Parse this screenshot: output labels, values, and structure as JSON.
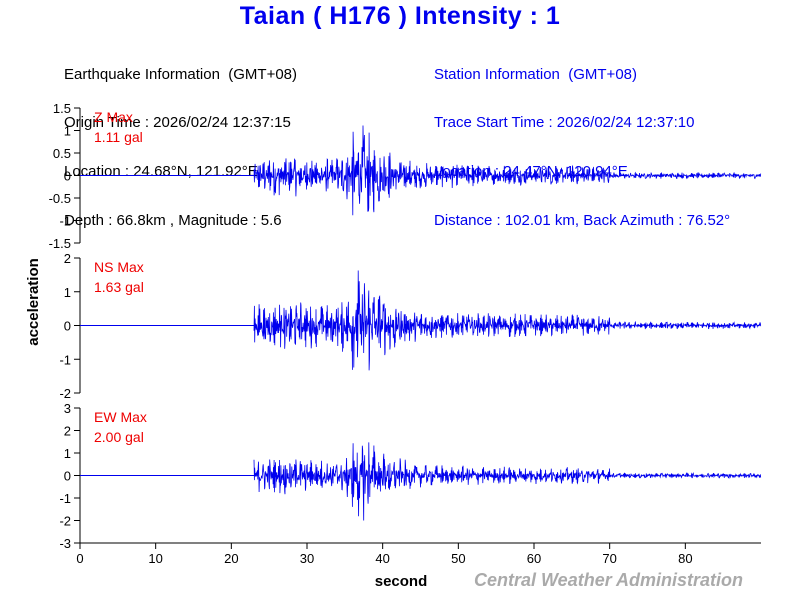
{
  "title": "Taian ( H176 ) Intensity : 1",
  "earthquake_info": {
    "heading": "Earthquake Information  (GMT+08)",
    "origin_time": "Origin Time : 2026/02/24 12:37:15",
    "location": "Location : 24.68°N, 121.92°E",
    "depth_magnitude": "Depth : 66.8km , Magnitude : 5.6"
  },
  "station_info": {
    "heading": "Station Information  (GMT+08)",
    "trace_start": "Trace Start Time : 2026/02/24 12:37:10",
    "location": "Location : 24.47°N, 120.94°E",
    "distance": "Distance : 102.01 km, Back Azimuth : 76.52°"
  },
  "credit": "Central Weather Administration",
  "colors": {
    "trace": "#0000ee",
    "title": "#0000ee",
    "max_label": "#ee0000",
    "credit": "#aaaaaa"
  },
  "chart_data": {
    "type": "line",
    "xlabel": "second",
    "ylabel": "acceleration",
    "xlim": [
      0,
      90
    ],
    "xticks": [
      0,
      10,
      20,
      30,
      40,
      50,
      60,
      70,
      80
    ],
    "signal_onset_s": 23,
    "peak_time_s": 37,
    "panels": [
      {
        "component": "Z",
        "label_line1": "Z Max",
        "label_line2": "1.11 gal",
        "peak": 1.11,
        "ylim": [
          -1.5,
          1.5
        ],
        "yticks": [
          -1.5,
          -1,
          -0.5,
          0,
          0.5,
          1,
          1.5
        ],
        "ytick_labels": [
          "-1.5",
          "-1",
          "-0.5",
          "0",
          "0.5",
          "1",
          "1.5"
        ]
      },
      {
        "component": "NS",
        "label_line1": "NS Max",
        "label_line2": "1.63 gal",
        "peak": 1.63,
        "ylim": [
          -2,
          2
        ],
        "yticks": [
          -2,
          -1,
          0,
          1,
          2
        ],
        "ytick_labels": [
          "-2",
          "-1",
          "0",
          "1",
          "2"
        ]
      },
      {
        "component": "EW",
        "label_line1": "EW Max",
        "label_line2": "2.00 gal",
        "peak": 2.0,
        "ylim": [
          -3,
          3
        ],
        "yticks": [
          -3,
          -2,
          -1,
          0,
          1,
          2,
          3
        ],
        "ytick_labels": [
          "-3",
          "-2",
          "-1",
          "0",
          "1",
          "2",
          "3"
        ]
      }
    ]
  }
}
